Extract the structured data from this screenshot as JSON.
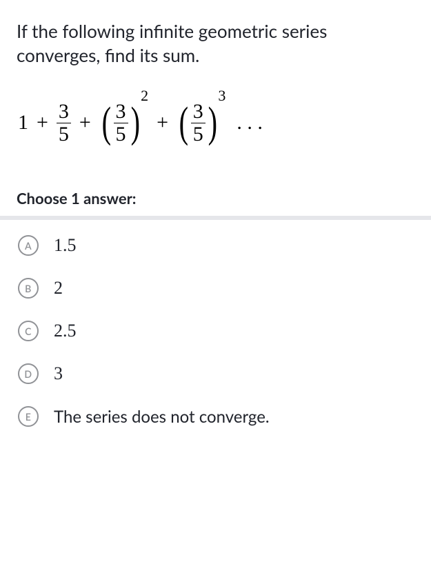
{
  "question": "If the following infinite geometric series converges, find its sum.",
  "series": {
    "first_term": "1",
    "frac_num": "3",
    "frac_den": "5",
    "exp2": "2",
    "exp3": "3",
    "plus": "+",
    "dots": ". . .",
    "lparen": "(",
    "rparen": ")"
  },
  "choose_label": "Choose 1 answer:",
  "answers": [
    {
      "letter": "A",
      "text": "1.5",
      "is_math": true
    },
    {
      "letter": "B",
      "text": "2",
      "is_math": true
    },
    {
      "letter": "C",
      "text": "2.5",
      "is_math": true
    },
    {
      "letter": "D",
      "text": "3",
      "is_math": true
    },
    {
      "letter": "E",
      "text": "The series does not converge.",
      "is_math": false
    }
  ],
  "colors": {
    "text": "#21242c",
    "radio_border": "#909296",
    "divider": "#e5e6ea",
    "background": "#ffffff"
  }
}
